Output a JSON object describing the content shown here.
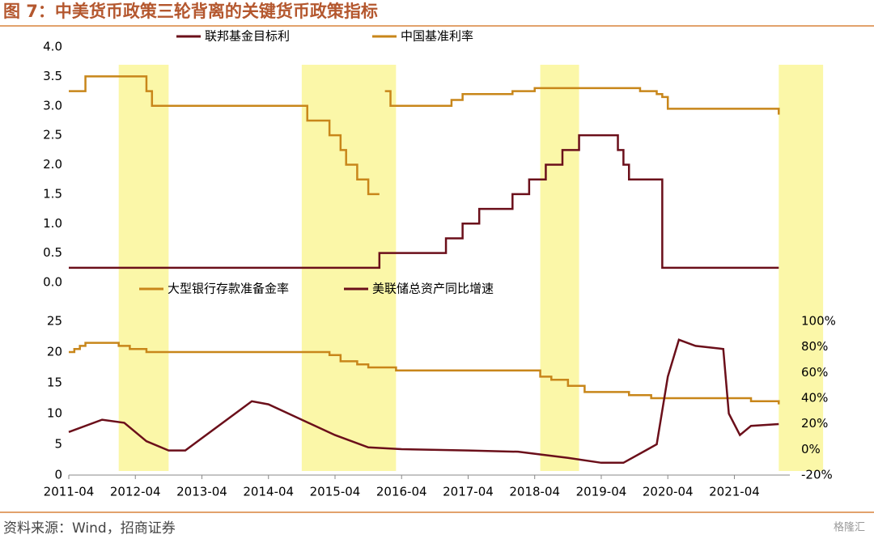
{
  "title": "图 7：中美货币政策三轮背离的关键货币政策指标",
  "source": "资料来源：Wind，招商证券",
  "watermark": "格隆汇",
  "shaded_periods": [
    [
      "2012-01",
      "2012-10"
    ],
    [
      "2014-10",
      "2016-03"
    ],
    [
      "2018-05",
      "2018-12"
    ],
    [
      "2021-12",
      "2022-08"
    ]
  ],
  "shaded_color": "#fbf7a8",
  "chart_data": [
    {
      "type": "step",
      "xlim": [
        "2011-04",
        "2022-02"
      ],
      "ylim": [
        0,
        4
      ],
      "yticks": [
        {
          "value": 0,
          "label": "0.0"
        },
        0.5,
        {
          "value": 1,
          "label": "1.0"
        },
        1.5,
        {
          "value": 2,
          "label": "2.0"
        },
        2.5,
        {
          "value": 3,
          "label": "3.0"
        },
        3.5,
        {
          "value": 4,
          "label": "4.0"
        }
      ],
      "series": [
        {
          "name": "联邦基金目标利",
          "color": "#6b0f1a",
          "x": [
            "2011-04",
            "2015-12",
            "2016-12",
            "2017-03",
            "2017-06",
            "2017-12",
            "2018-03",
            "2018-06",
            "2018-09",
            "2018-12",
            "2019-07",
            "2019-08",
            "2019-09",
            "2020-03",
            "2021-12"
          ],
          "values": [
            0.25,
            0.5,
            0.75,
            1.0,
            1.25,
            1.5,
            1.75,
            2.0,
            2.25,
            2.5,
            2.25,
            2.0,
            1.75,
            0.25,
            0.25
          ]
        },
        {
          "name": "中国基准利率",
          "color": "#c8861a",
          "x": [
            "2011-04",
            "2011-07",
            "2012-06",
            "2012-07",
            "2014-11",
            "2015-03",
            "2015-05",
            "2015-06",
            "2015-08",
            "2015-10",
            "2015-12",
            "2015-12",
            "2016-01",
            "2016-02",
            "2017-01",
            "2017-03",
            "2017-12",
            "2018-04",
            "2019-11",
            "2020-02",
            "2020-03",
            "2020-04",
            "2021-12",
            "2021-12"
          ],
          "values": [
            3.25,
            3.5,
            3.25,
            3.0,
            2.75,
            2.5,
            2.25,
            2.0,
            1.75,
            1.5,
            1.5,
            null,
            3.25,
            3.0,
            3.1,
            3.2,
            3.25,
            3.3,
            3.25,
            3.2,
            3.15,
            2.95,
            2.95,
            2.85
          ]
        }
      ]
    },
    {
      "type": "line",
      "xlim": [
        "2011-04",
        "2022-02"
      ],
      "xticks": [
        "2011-04",
        "2012-04",
        "2013-04",
        "2014-04",
        "2015-04",
        "2016-04",
        "2017-04",
        "2018-04",
        "2019-04",
        "2020-04",
        "2021-04"
      ],
      "ylim": [
        0,
        25
      ],
      "yticks": [
        0,
        5,
        10,
        15,
        20,
        25
      ],
      "y2lim": [
        -20,
        100
      ],
      "y2ticks": [
        {
          "value": -20,
          "label": "-20%"
        },
        {
          "value": 0,
          "label": "0%"
        },
        {
          "value": 20,
          "label": "20%"
        },
        {
          "value": 40,
          "label": "40%"
        },
        {
          "value": 60,
          "label": "60%"
        },
        {
          "value": 80,
          "label": "80%"
        },
        {
          "value": 100,
          "label": "100%"
        }
      ],
      "series": [
        {
          "name": "大型银行存款准备金率",
          "color": "#c8861a",
          "step": true,
          "x": [
            "2011-04",
            "2011-05",
            "2011-06",
            "2011-07",
            "2012-01",
            "2012-03",
            "2012-06",
            "2015-03",
            "2015-05",
            "2015-08",
            "2015-10",
            "2016-03",
            "2018-05",
            "2018-07",
            "2018-10",
            "2019-01",
            "2019-09",
            "2020-01",
            "2021-07",
            "2021-12"
          ],
          "values": [
            20,
            20.5,
            21,
            21.5,
            21,
            20.5,
            20,
            19.5,
            18.5,
            18,
            17.5,
            17,
            16,
            15.5,
            14.5,
            13.5,
            13,
            12.5,
            12,
            11.5
          ]
        },
        {
          "name": "美联储总资产同比增速",
          "color": "#6b0f1a",
          "axis": "y2",
          "x": [
            "2011-04",
            "2011-10",
            "2012-02",
            "2012-06",
            "2012-10",
            "2013-01",
            "2013-04",
            "2013-10",
            "2014-01",
            "2014-04",
            "2014-10",
            "2015-04",
            "2015-10",
            "2016-04",
            "2017-04",
            "2018-01",
            "2018-10",
            "2019-04",
            "2019-08",
            "2019-12",
            "2020-02",
            "2020-04",
            "2020-06",
            "2020-09",
            "2021-02",
            "2021-03",
            "2021-05",
            "2021-07",
            "2021-12"
          ],
          "values": [
            13.6,
            23.2,
            20.8,
            6.4,
            -0.8,
            -0.8,
            8.8,
            28,
            37.6,
            35.2,
            23.2,
            11.2,
            1.6,
            0.2,
            -0.8,
            -1.8,
            -6.6,
            -10.4,
            -10.4,
            -0.8,
            4,
            56.8,
            85.6,
            80.8,
            78.4,
            28,
            11.2,
            18.4,
            19.8
          ]
        }
      ]
    }
  ]
}
